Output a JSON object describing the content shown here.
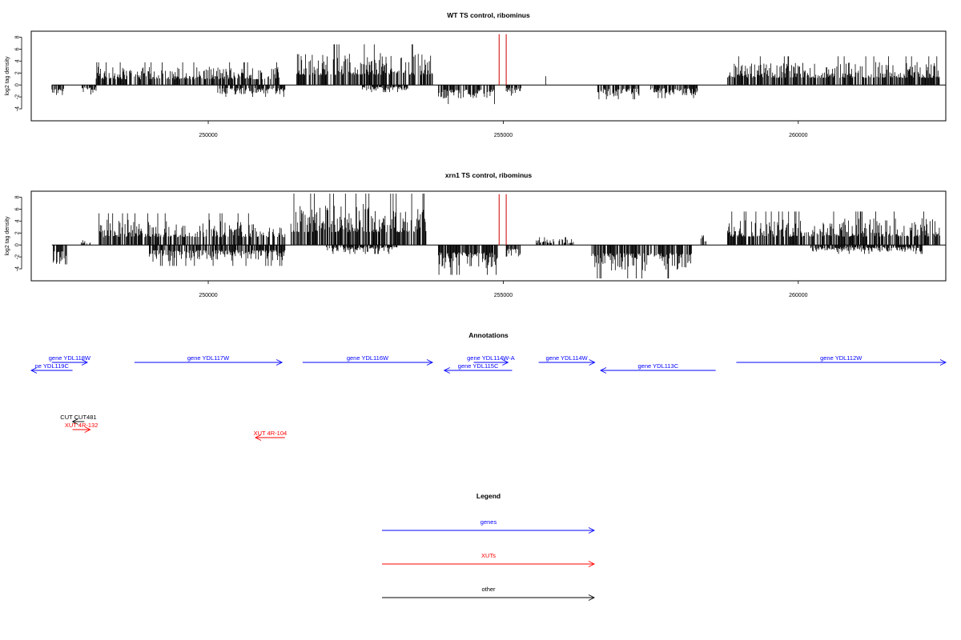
{
  "colors": {
    "genes": "#0000ff",
    "xuts": "#ff0000",
    "other": "#000000",
    "marker": "#cc0000"
  },
  "chart_data": [
    {
      "type": "bar",
      "title": "WT TS control, ribominus",
      "ylabel": "log2 tag density",
      "xlim": [
        247000,
        262500
      ],
      "ylim": [
        -6,
        9
      ],
      "yticks": [
        -4,
        -2,
        0,
        2,
        4,
        6,
        8
      ],
      "xticks": [
        250000,
        255000,
        260000
      ],
      "grid": false,
      "markers_x": [
        254930,
        255050
      ],
      "segments": [
        {
          "x0": 247350,
          "x1": 247550,
          "lo": -2.5,
          "hi": 0
        },
        {
          "x0": 247850,
          "x1": 248100,
          "lo": -1.6,
          "hi": 0
        },
        {
          "x0": 248100,
          "x1": 251200,
          "lo": 0,
          "hi": 3.8
        },
        {
          "x0": 250150,
          "x1": 251300,
          "lo": -2.0,
          "hi": 0
        },
        {
          "x0": 251500,
          "x1": 253800,
          "lo": 0,
          "hi": 6.8
        },
        {
          "x0": 252600,
          "x1": 253400,
          "lo": -1.2,
          "hi": 0
        },
        {
          "x0": 253900,
          "x1": 254850,
          "lo": -3.2,
          "hi": 0
        },
        {
          "x0": 255050,
          "x1": 255300,
          "lo": -1.8,
          "hi": 0
        },
        {
          "x0": 255700,
          "x1": 255720,
          "lo": 0,
          "hi": 2.0
        },
        {
          "x0": 256600,
          "x1": 257300,
          "lo": -2.4,
          "hi": 0
        },
        {
          "x0": 257500,
          "x1": 258300,
          "lo": -2.2,
          "hi": 0
        },
        {
          "x0": 258800,
          "x1": 262400,
          "lo": 0,
          "hi": 4.8
        }
      ]
    },
    {
      "type": "bar",
      "title": "xrn1 TS control, ribominus",
      "ylabel": "log2 tag density",
      "xlim": [
        247000,
        262500
      ],
      "ylim": [
        -6,
        9
      ],
      "yticks": [
        -4,
        -2,
        0,
        2,
        4,
        6,
        8
      ],
      "xticks": [
        250000,
        255000,
        260000
      ],
      "grid": false,
      "markers_x": [
        254930,
        255050
      ],
      "segments": [
        {
          "x0": 247350,
          "x1": 247600,
          "lo": -4.2,
          "hi": 0
        },
        {
          "x0": 247850,
          "x1": 248000,
          "lo": 0,
          "hi": 1.0
        },
        {
          "x0": 248150,
          "x1": 251300,
          "lo": 0,
          "hi": 5.3
        },
        {
          "x0": 249000,
          "x1": 251300,
          "lo": -3.5,
          "hi": 0
        },
        {
          "x0": 251400,
          "x1": 253700,
          "lo": 0,
          "hi": 8.6
        },
        {
          "x0": 252000,
          "x1": 253200,
          "lo": -1.5,
          "hi": 0
        },
        {
          "x0": 253900,
          "x1": 254900,
          "lo": -5.0,
          "hi": 0
        },
        {
          "x0": 255050,
          "x1": 255300,
          "lo": -2.5,
          "hi": 0
        },
        {
          "x0": 255550,
          "x1": 256200,
          "lo": 0,
          "hi": 1.3
        },
        {
          "x0": 256500,
          "x1": 258200,
          "lo": -5.6,
          "hi": 0
        },
        {
          "x0": 258350,
          "x1": 258450,
          "lo": 0,
          "hi": 2.4
        },
        {
          "x0": 258800,
          "x1": 262400,
          "lo": 0,
          "hi": 5.6
        },
        {
          "x0": 260200,
          "x1": 262100,
          "lo": -1.5,
          "hi": 0
        }
      ]
    }
  ],
  "annotations": {
    "title": "Annotations",
    "xlim": [
      247000,
      262500
    ],
    "features": [
      {
        "label": "gene YDL118W",
        "x0": 247350,
        "x1": 247950,
        "strand": "+",
        "row": 0,
        "kind": "genes"
      },
      {
        "label": "ne YDL119C",
        "x0": 246950,
        "x1": 247700,
        "strand": "-",
        "row": 1,
        "kind": "genes"
      },
      {
        "label": "gene YDL117W",
        "x0": 248750,
        "x1": 251250,
        "strand": "+",
        "row": 0,
        "kind": "genes"
      },
      {
        "label": "gene YDL116W",
        "x0": 251600,
        "x1": 253800,
        "strand": "+",
        "row": 0,
        "kind": "genes"
      },
      {
        "label": "gene YDL114W-A",
        "x0": 254500,
        "x1": 255080,
        "strand": "+",
        "row": 0,
        "kind": "genes"
      },
      {
        "label": "gene YDL115C",
        "x0": 254000,
        "x1": 255150,
        "strand": "-",
        "row": 1,
        "kind": "genes"
      },
      {
        "label": "gene YDL114W",
        "x0": 255600,
        "x1": 256550,
        "strand": "+",
        "row": 0,
        "kind": "genes"
      },
      {
        "label": "gene YDL113C",
        "x0": 256650,
        "x1": 258600,
        "strand": "-",
        "row": 1,
        "kind": "genes"
      },
      {
        "label": "gene YDL112W",
        "x0": 258950,
        "x1": 263000,
        "strand": "+",
        "row": 0,
        "kind": "genes"
      },
      {
        "label": "CUT CUT481",
        "x0": 247700,
        "x1": 247900,
        "strand": "-",
        "row": 2,
        "kind": "other"
      },
      {
        "label": "XUT 4R-132",
        "x0": 247700,
        "x1": 248000,
        "strand": "+",
        "row": 3,
        "kind": "xuts"
      },
      {
        "label": "XUT 4R-104",
        "x0": 250800,
        "x1": 251300,
        "strand": "-",
        "row": 4,
        "kind": "xuts"
      }
    ]
  },
  "legend": {
    "title": "Legend",
    "items": [
      {
        "label": "genes",
        "kind": "genes"
      },
      {
        "label": "XUTs",
        "kind": "xuts"
      },
      {
        "label": "other",
        "kind": "other"
      }
    ]
  }
}
